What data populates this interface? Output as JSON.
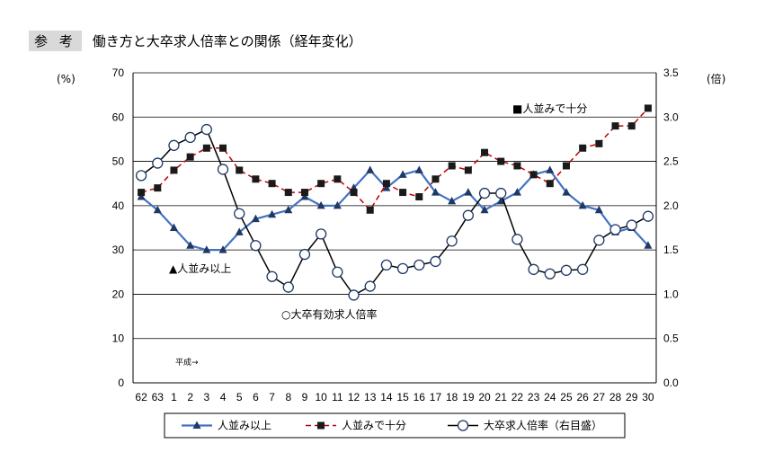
{
  "title": {
    "tag": "参 考",
    "main": "働き方と大卒求人倍率との関係（経年変化）"
  },
  "chart_data": {
    "type": "line",
    "left_unit": "(%)",
    "right_unit": "(倍)",
    "categories": [
      "62",
      "63",
      "1",
      "2",
      "3",
      "4",
      "5",
      "6",
      "7",
      "8",
      "9",
      "10",
      "11",
      "12",
      "13",
      "14",
      "15",
      "16",
      "17",
      "18",
      "19",
      "20",
      "21",
      "22",
      "23",
      "24",
      "25",
      "26",
      "27",
      "28",
      "29",
      "30"
    ],
    "left_ylim": [
      0,
      70
    ],
    "left_ticks": [
      "0",
      "10",
      "20",
      "30",
      "40",
      "50",
      "60",
      "70"
    ],
    "right_ylim": [
      0,
      3.5
    ],
    "right_ticks": [
      "0.0",
      "0.5",
      "1.0",
      "1.5",
      "2.0",
      "2.5",
      "3.0",
      "3.5"
    ],
    "grid": true,
    "series": [
      {
        "name": "人並み以上",
        "axis": "left",
        "color": "#4472c4",
        "marker": "triangle",
        "values": [
          42,
          39,
          35,
          31,
          30,
          30,
          34,
          37,
          38,
          39,
          42,
          40,
          40,
          44,
          48,
          44,
          47,
          48,
          43,
          41,
          43,
          39,
          41,
          43,
          47,
          48,
          43,
          40,
          39,
          34,
          35,
          31
        ]
      },
      {
        "name": "人並みで十分",
        "axis": "left",
        "color": "#c00000",
        "marker": "square",
        "values": [
          43,
          44,
          48,
          51,
          53,
          53,
          48,
          46,
          45,
          43,
          43,
          45,
          46,
          43,
          39,
          45,
          43,
          42,
          46,
          49,
          48,
          52,
          50,
          49,
          47,
          45,
          49,
          53,
          54,
          58,
          58,
          62
        ]
      },
      {
        "name": "大卒求人倍率（右目盛）",
        "axis": "right",
        "color": "#000000",
        "marker": "circle",
        "values": [
          2.34,
          2.48,
          2.68,
          2.77,
          2.86,
          2.41,
          1.91,
          1.55,
          1.2,
          1.08,
          1.45,
          1.68,
          1.25,
          0.99,
          1.09,
          1.33,
          1.29,
          1.33,
          1.37,
          1.6,
          1.89,
          2.14,
          2.14,
          1.62,
          1.28,
          1.23,
          1.27,
          1.28,
          1.61,
          1.73,
          1.78,
          1.88
        ]
      }
    ],
    "annotations": {
      "s1": "▲人並み以上",
      "s2": "■人並みで十分",
      "s3": "○大卒有効求人倍率",
      "era": "平成→"
    }
  }
}
